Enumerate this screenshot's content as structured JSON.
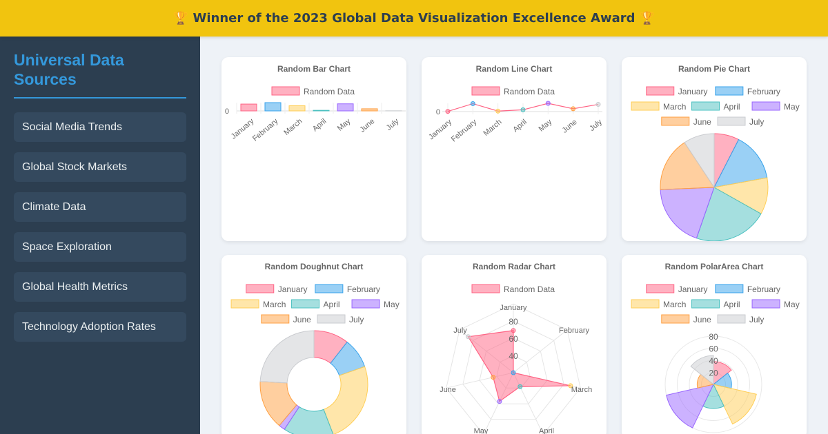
{
  "banner": {
    "text": "🏆 Winner of the 2023 Global Data Visualization Excellence Award 🏆"
  },
  "sidebar": {
    "title": "Universal Data Sources",
    "items": [
      {
        "label": "Social Media Trends"
      },
      {
        "label": "Global Stock Markets"
      },
      {
        "label": "Climate Data"
      },
      {
        "label": "Space Exploration"
      },
      {
        "label": "Global Health Metrics"
      },
      {
        "label": "Technology Adoption Rates"
      }
    ]
  },
  "colors": {
    "fill": [
      "rgba(255,99,132,0.5)",
      "rgba(54,162,235,0.5)",
      "rgba(255,206,86,0.5)",
      "rgba(75,192,192,0.5)",
      "rgba(153,102,255,0.5)",
      "rgba(255,159,64,0.5)",
      "rgba(201,203,207,0.5)"
    ],
    "stroke": [
      "#ff6384",
      "#36a2eb",
      "#ffce56",
      "#4bc0c0",
      "#9966ff",
      "#ff9f40",
      "#c9cbcf"
    ]
  },
  "chart_data": [
    {
      "type": "bar",
      "title": "Random Bar Chart",
      "legend": [
        "Random Data"
      ],
      "categories": [
        "January",
        "February",
        "March",
        "April",
        "May",
        "June",
        "July"
      ],
      "values": [
        58,
        70,
        44,
        5,
        60,
        18,
        1
      ],
      "yticks": [
        "0"
      ]
    },
    {
      "type": "line",
      "title": "Random Line Chart",
      "legend": [
        "Random Data"
      ],
      "categories": [
        "January",
        "February",
        "March",
        "April",
        "May",
        "June",
        "July"
      ],
      "values": [
        2,
        75,
        5,
        17,
        78,
        27,
        68
      ],
      "yticks": [
        "0"
      ]
    },
    {
      "type": "pie",
      "title": "Random Pie Chart",
      "categories": [
        "January",
        "February",
        "March",
        "April",
        "May",
        "June",
        "July"
      ],
      "values": [
        17,
        33,
        25,
        50,
        43,
        37,
        21
      ]
    },
    {
      "type": "doughnut",
      "title": "Random Doughnut Chart",
      "categories": [
        "January",
        "February",
        "March",
        "April",
        "May",
        "June",
        "July"
      ],
      "values": [
        28,
        24,
        65,
        40,
        5,
        39,
        64
      ]
    },
    {
      "type": "radar",
      "title": "Random Radar Chart",
      "legend": [
        "Random Data"
      ],
      "categories": [
        "January",
        "February",
        "March",
        "April",
        "May",
        "June",
        "July"
      ],
      "values": [
        69,
        20,
        88,
        38,
        57,
        44,
        87
      ],
      "rticks": [
        "40",
        "60",
        "80"
      ],
      "rmin": 20,
      "rmax": 80
    },
    {
      "type": "polarArea",
      "title": "Random PolarArea Chart",
      "categories": [
        "January",
        "February",
        "March",
        "April",
        "May",
        "June",
        "July"
      ],
      "values": [
        38,
        30,
        73,
        40,
        80,
        27,
        48
      ],
      "rticks": [
        "20",
        "40",
        "60",
        "80"
      ],
      "rmax": 80
    }
  ]
}
